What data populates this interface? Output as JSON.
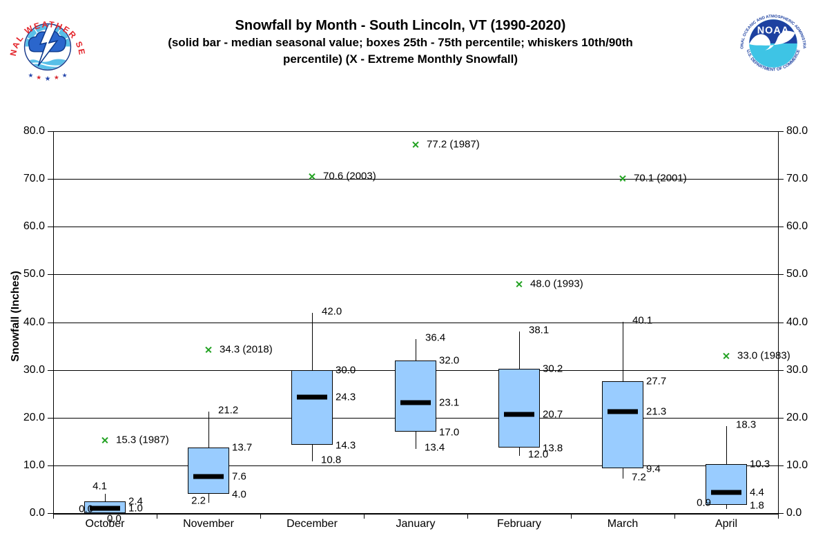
{
  "header": {
    "title": "Snowfall by Month - South Lincoln, VT (1990-2020)",
    "subtitle_line1": "(solid bar - median seasonal value; boxes 25th - 75th percentile; whiskers 10th/90th",
    "subtitle_line2": "percentile) (X - Extreme Monthly Snowfall)"
  },
  "logos": {
    "nws_ring_text": "NATIONAL WEATHER SERVICE",
    "noaa_center_text": "NOAA",
    "noaa_top_text": "NATIONAL OCEANIC AND ATMOSPHERIC ADMINISTRATION",
    "noaa_bottom_text": "U.S. DEPARTMENT OF COMMERCE"
  },
  "chart_data": {
    "type": "box",
    "title": "Snowfall by Month - South Lincoln, VT (1990-2020)",
    "xlabel": "",
    "ylabel": "Snowfall (Inches)",
    "ylim": [
      0,
      80
    ],
    "ytick_step": 10,
    "ytick_labels": [
      "0.0",
      "10.0",
      "20.0",
      "30.0",
      "40.0",
      "50.0",
      "60.0",
      "70.0",
      "80.0"
    ],
    "grid": true,
    "dual_y_axis_labels": true,
    "legend": "none",
    "categories": [
      "October",
      "November",
      "December",
      "January",
      "February",
      "March",
      "April"
    ],
    "series": [
      {
        "month": "October",
        "p10": 0.0,
        "p25": 0.0,
        "median": 1.0,
        "p75": 2.4,
        "p90": 4.1,
        "extreme": {
          "value": 15.3,
          "year": "1987",
          "label": "15.3 (1987)"
        }
      },
      {
        "month": "November",
        "p10": 2.2,
        "p25": 4.0,
        "median": 7.6,
        "p75": 13.7,
        "p90": 21.2,
        "extreme": {
          "value": 34.3,
          "year": "2018",
          "label": "34.3 (2018)"
        }
      },
      {
        "month": "December",
        "p10": 10.8,
        "p25": 14.3,
        "median": 24.3,
        "p75": 30.0,
        "p90": 42.0,
        "extreme": {
          "value": 70.6,
          "year": "2003",
          "label": "70.6 (2003)"
        }
      },
      {
        "month": "January",
        "p10": 13.4,
        "p25": 17.0,
        "median": 23.1,
        "p75": 32.0,
        "p90": 36.4,
        "extreme": {
          "value": 77.2,
          "year": "1987",
          "label": "77.2 (1987)"
        }
      },
      {
        "month": "February",
        "p10": 12.0,
        "p25": 13.8,
        "median": 20.7,
        "p75": 30.2,
        "p90": 38.1,
        "extreme": {
          "value": 48.0,
          "year": "1993",
          "label": "48.0 (1993)"
        }
      },
      {
        "month": "March",
        "p10": 7.2,
        "p25": 9.4,
        "median": 21.3,
        "p75": 27.7,
        "p90": 40.1,
        "extreme": {
          "value": 70.1,
          "year": "2001",
          "label": "70.1 (2001)"
        }
      },
      {
        "month": "April",
        "p10": 0.9,
        "p25": 1.8,
        "median": 4.4,
        "p75": 10.3,
        "p90": 18.3,
        "extreme": {
          "value": 33.0,
          "year": "1983",
          "label": "33.0 (1983)"
        }
      }
    ],
    "colors": {
      "box_fill": "#99CCFF",
      "box_border": "#000000",
      "median_bar": "#000000",
      "extreme_marker": "#21A121",
      "grid": "#000000",
      "axis": "#000000",
      "text": "#000000"
    }
  }
}
